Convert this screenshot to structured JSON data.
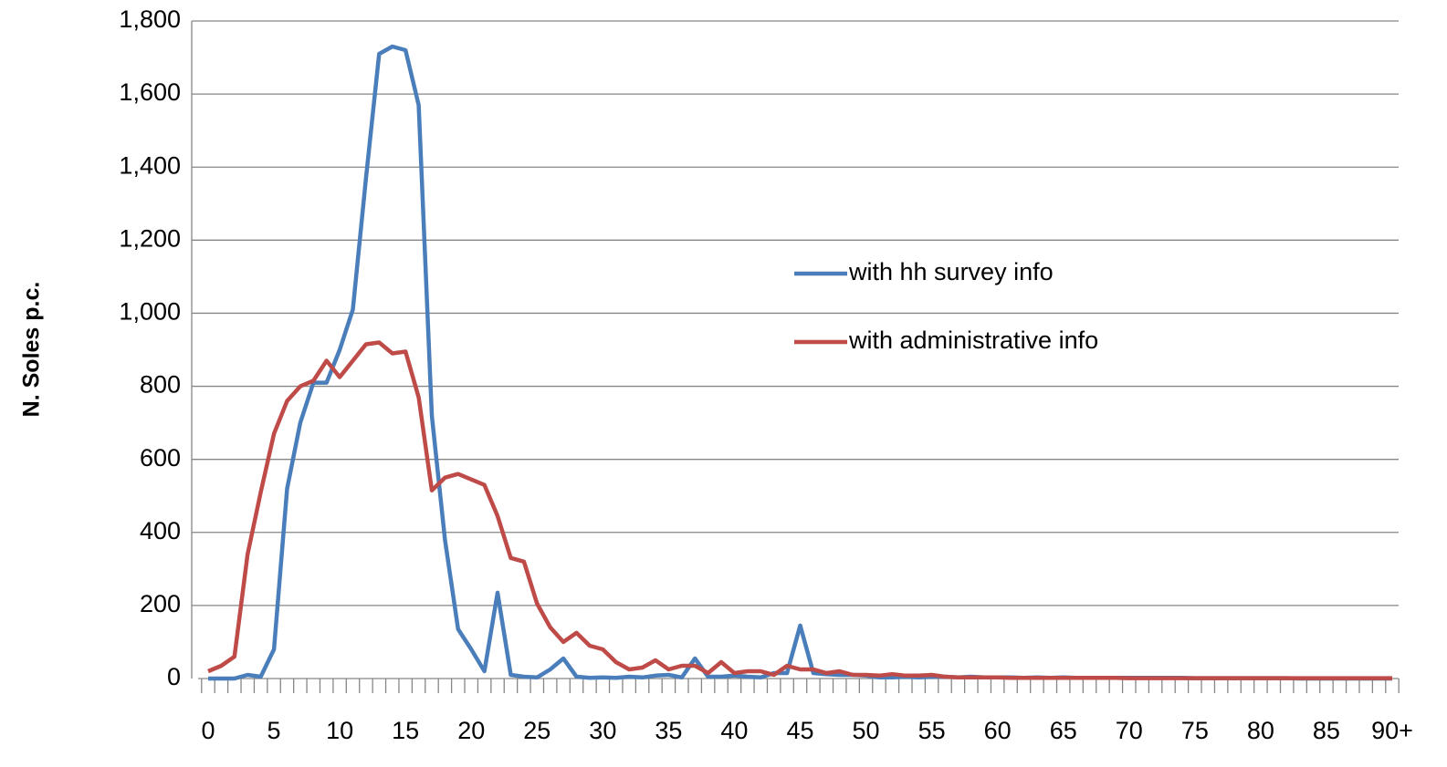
{
  "chart_data": {
    "type": "line",
    "y_label": "N. Soles p.c.",
    "categories": [
      "0",
      null,
      null,
      null,
      null,
      "5",
      null,
      null,
      null,
      null,
      "10",
      null,
      null,
      null,
      null,
      "15",
      null,
      null,
      null,
      null,
      "20",
      null,
      null,
      null,
      null,
      "25",
      null,
      null,
      null,
      null,
      "30",
      null,
      null,
      null,
      null,
      "35",
      null,
      null,
      null,
      null,
      "40",
      null,
      null,
      null,
      null,
      "45",
      null,
      null,
      null,
      null,
      "50",
      null,
      null,
      null,
      null,
      "55",
      null,
      null,
      null,
      null,
      "60",
      null,
      null,
      null,
      null,
      "65",
      null,
      null,
      null,
      null,
      "70",
      null,
      null,
      null,
      null,
      "75",
      null,
      null,
      null,
      null,
      "80",
      null,
      null,
      null,
      null,
      "85",
      null,
      null,
      null,
      null,
      "90+"
    ],
    "series": [
      {
        "name": "with hh survey info",
        "color": "#4a7ebb",
        "values": [
          0,
          0,
          0,
          10,
          5,
          80,
          520,
          700,
          810,
          810,
          900,
          1010,
          1370,
          1710,
          1730,
          1720,
          1570,
          720,
          380,
          135,
          80,
          20,
          235,
          10,
          5,
          3,
          25,
          55,
          5,
          2,
          3,
          2,
          5,
          3,
          8,
          10,
          3,
          55,
          5,
          5,
          8,
          5,
          3,
          15,
          15,
          145,
          15,
          12,
          10,
          10,
          8,
          3,
          3,
          5,
          3,
          5,
          5,
          3,
          5,
          3,
          3,
          3,
          2,
          3,
          2,
          3,
          2,
          2,
          2,
          2,
          2,
          2,
          2,
          2,
          2,
          1,
          1,
          1,
          1,
          1,
          1,
          1,
          1,
          0,
          0,
          0,
          0,
          0,
          0,
          0,
          0
        ]
      },
      {
        "name": "with administrative info",
        "color": "#be4b48",
        "values": [
          20,
          35,
          60,
          340,
          510,
          670,
          760,
          800,
          815,
          870,
          825,
          870,
          915,
          920,
          890,
          895,
          770,
          515,
          550,
          560,
          545,
          530,
          445,
          330,
          320,
          205,
          140,
          100,
          125,
          90,
          80,
          45,
          25,
          30,
          50,
          25,
          35,
          35,
          15,
          45,
          15,
          20,
          20,
          10,
          35,
          25,
          25,
          15,
          20,
          10,
          10,
          8,
          12,
          8,
          8,
          10,
          5,
          3,
          3,
          3,
          3,
          2,
          2,
          2,
          2,
          2,
          2,
          2,
          2,
          2,
          1,
          1,
          1,
          1,
          1,
          1,
          1,
          1,
          1,
          1,
          1,
          1,
          1,
          1,
          1,
          1,
          1,
          1,
          1,
          1,
          1
        ]
      }
    ],
    "ylim": [
      0,
      1800
    ],
    "yticks": [
      0,
      200,
      400,
      600,
      800,
      {
        "value": 1000,
        "label": "1,000"
      },
      {
        "value": 1200,
        "label": "1,200"
      },
      {
        "value": 1400,
        "label": "1,400"
      },
      {
        "value": 1600,
        "label": "1,600"
      },
      {
        "value": 1800,
        "label": "1,800"
      }
    ],
    "grid": true,
    "legend": "center-right"
  }
}
